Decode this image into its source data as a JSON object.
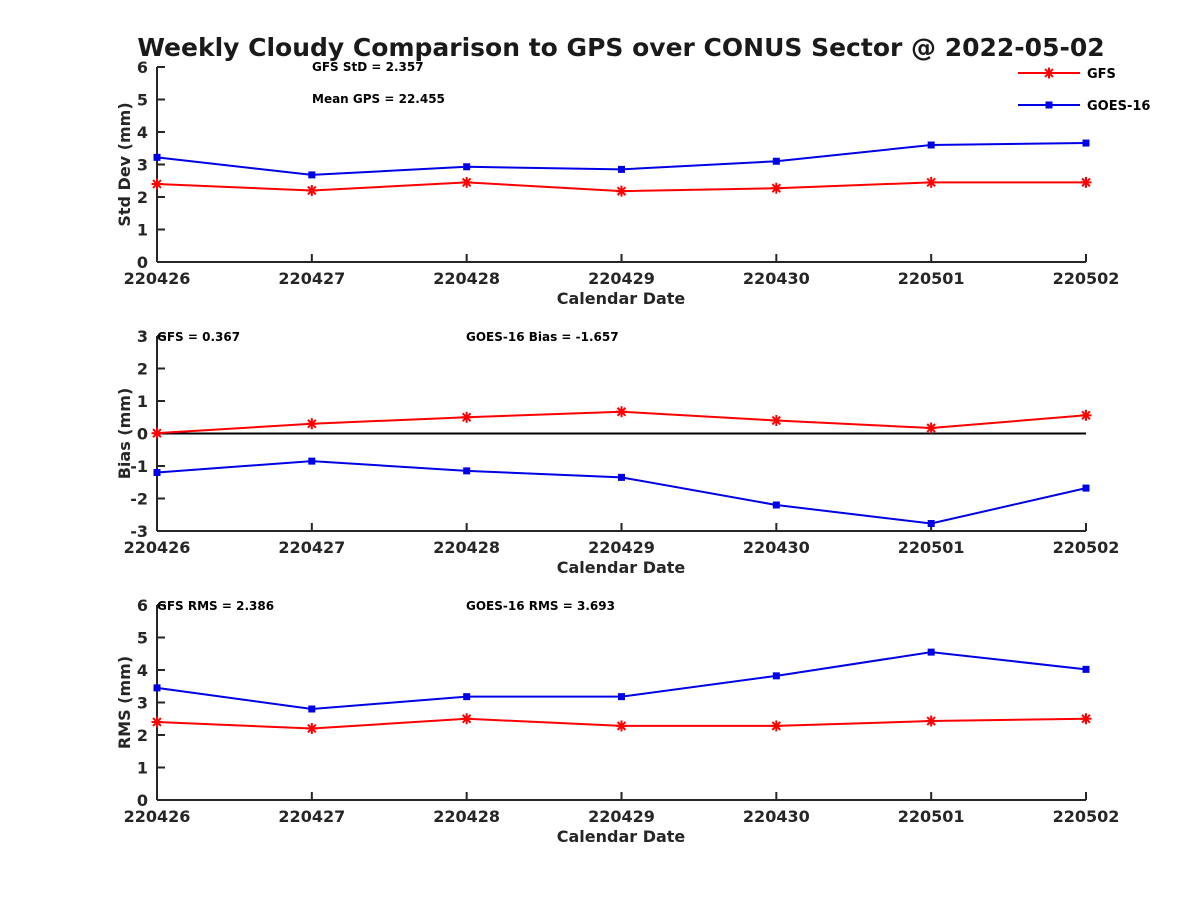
{
  "title": "Weekly Cloudy Comparison to GPS over CONUS Sector @ 2022-05-02",
  "legend": {
    "placement": "top-right",
    "entries": [
      "GFS",
      "GOES-16"
    ]
  },
  "colors": {
    "GFS": "#ff0000",
    "GOES-16": "#0000e6",
    "zero_line": "#000000",
    "axes": "#262626"
  },
  "chart_data": [
    {
      "type": "line",
      "categories": [
        "220426",
        "220427",
        "220428",
        "220429",
        "220430",
        "220501",
        "220502"
      ],
      "xlabel": "Calendar Date",
      "ylabel": "Std Dev (mm)",
      "ylim": [
        0,
        6
      ],
      "yticks": [
        "0",
        "1",
        "2",
        "3",
        "4",
        "5",
        "6"
      ],
      "series": [
        {
          "name": "GFS",
          "values": [
            2.4,
            2.2,
            2.45,
            2.18,
            2.27,
            2.45,
            2.45
          ]
        },
        {
          "name": "GOES-16",
          "values": [
            3.22,
            2.68,
            2.93,
            2.85,
            3.1,
            3.6,
            3.66
          ]
        }
      ],
      "annotations": [
        "GFS StD = 2.357",
        "Mean GPS = 22.455"
      ],
      "grid": false
    },
    {
      "type": "line",
      "categories": [
        "220426",
        "220427",
        "220428",
        "220429",
        "220430",
        "220501",
        "220502"
      ],
      "xlabel": "Calendar Date",
      "ylabel": "Bias (mm)",
      "ylim": [
        -3,
        3
      ],
      "yticks": [
        "-3",
        "-2",
        "-1",
        "0",
        "1",
        "2",
        "3"
      ],
      "zero_line": true,
      "series": [
        {
          "name": "GFS",
          "values": [
            0.01,
            0.3,
            0.5,
            0.67,
            0.4,
            0.17,
            0.56
          ]
        },
        {
          "name": "GOES-16",
          "values": [
            -1.2,
            -0.85,
            -1.15,
            -1.35,
            -2.2,
            -2.77,
            -1.68
          ]
        }
      ],
      "annotations": [
        "GFS = 0.367",
        "GOES-16 Bias  = -1.657"
      ],
      "grid": false
    },
    {
      "type": "line",
      "categories": [
        "220426",
        "220427",
        "220428",
        "220429",
        "220430",
        "220501",
        "220502"
      ],
      "xlabel": "Calendar Date",
      "ylabel": "RMS (mm)",
      "ylim": [
        0,
        6
      ],
      "yticks": [
        "0",
        "1",
        "2",
        "3",
        "4",
        "5",
        "6"
      ],
      "series": [
        {
          "name": "GFS",
          "values": [
            2.4,
            2.2,
            2.5,
            2.28,
            2.28,
            2.43,
            2.5
          ]
        },
        {
          "name": "GOES-16",
          "values": [
            3.45,
            2.8,
            3.18,
            3.18,
            3.82,
            4.55,
            4.02
          ]
        }
      ],
      "annotations": [
        "GFS RMS = 2.386",
        "GOES-16 RMS = 3.693"
      ],
      "grid": false
    }
  ]
}
